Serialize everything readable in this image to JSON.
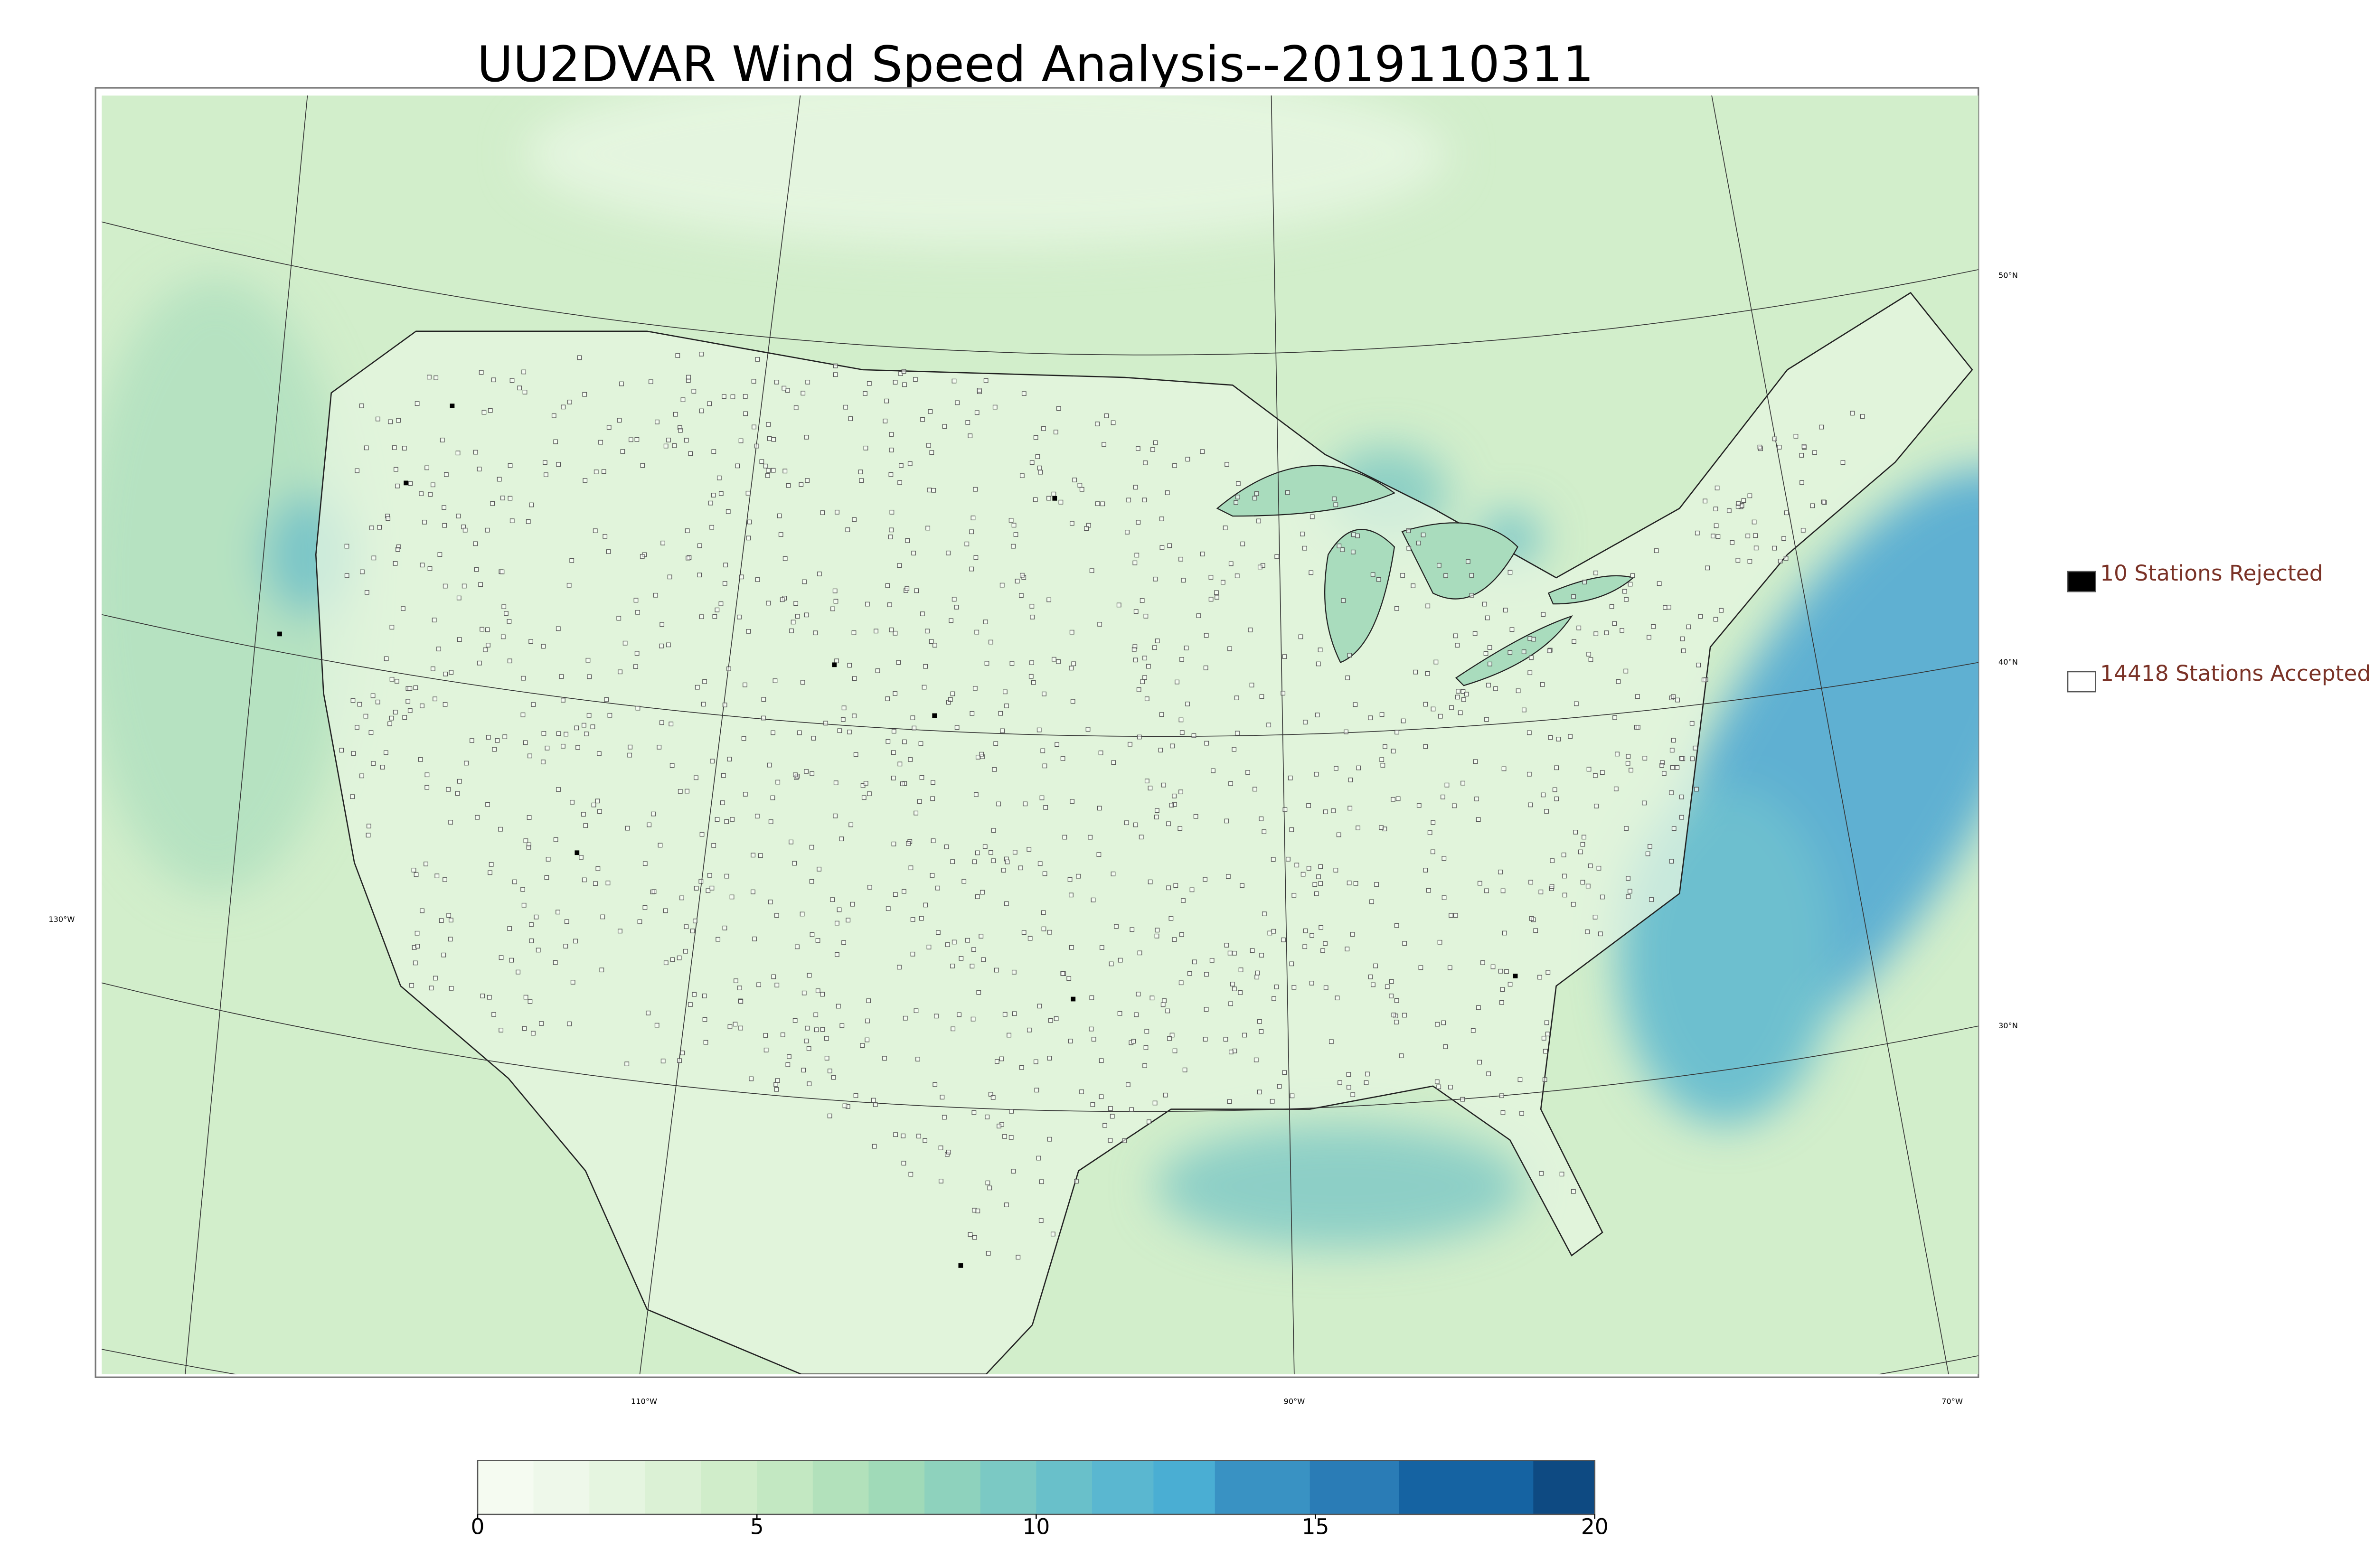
{
  "title": "UU2DVAR Wind Speed Analysis--2019110311",
  "legend": [
    {
      "label": "10 Stations Rejected",
      "color": "#000000"
    },
    {
      "label": "14418 Stations Accepted",
      "color": "#ffffff"
    }
  ],
  "graticule": {
    "lon_labels": [
      "130°W",
      "110°W",
      "90°W",
      "70°W"
    ],
    "lat_labels": [
      "50°N",
      "40°N",
      "30°N"
    ]
  },
  "colorbar": {
    "lim": [
      0,
      20
    ],
    "ticks": [
      0,
      5,
      10,
      15,
      20
    ],
    "levels": [
      0,
      1,
      2,
      3,
      4,
      5,
      6,
      7,
      8,
      9,
      10,
      11,
      12.1,
      13.2,
      14.9,
      16.5,
      18.9,
      20
    ],
    "colors": [
      "#f5fbf1",
      "#eef8ea",
      "#e5f5e0",
      "#dbf1d5",
      "#d0edca",
      "#c3e8c2",
      "#b2e1bb",
      "#a0dab8",
      "#8ed2bd",
      "#7bc9c4",
      "#69c0ca",
      "#5ab7d0",
      "#4aaed3",
      "#3992c3",
      "#2a7cb6",
      "#1563a2",
      "#0e4a82"
    ]
  }
}
